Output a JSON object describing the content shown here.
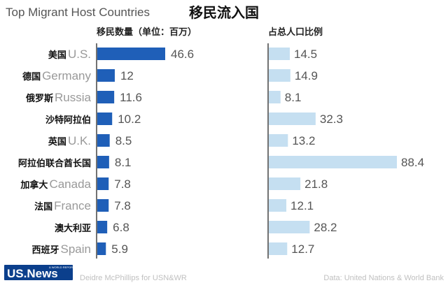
{
  "title_en": "Top Migrant Host Countries",
  "title_zh": "移民流入国",
  "footer": {
    "credit": "Deidre McPhillips for USN&WR",
    "source": "Data: United Nations & World Bank",
    "logo_main": "US.News",
    "logo_small": "& WORLD REPORT"
  },
  "colors": {
    "left_bar": "#1f5fb8",
    "right_bar": "#c5dff1"
  },
  "chart_data": [
    {
      "type": "bar",
      "orientation": "horizontal",
      "title": "移民数量（单位：百万）",
      "categories_zh": [
        "美国",
        "德国",
        "俄罗斯",
        "沙特阿拉伯",
        "英国",
        "阿拉伯联合酋长国",
        "加拿大",
        "法国",
        "澳大利亚",
        "西班牙"
      ],
      "categories_en": [
        "U.S.",
        "Germany",
        "Russia",
        "",
        "U.K.",
        "",
        "Canada",
        "France",
        "",
        "Spain"
      ],
      "values": [
        46.6,
        12,
        11.6,
        10.2,
        8.5,
        8.1,
        7.8,
        7.8,
        6.8,
        5.9
      ],
      "labels": [
        "46.6",
        "12",
        "11.6",
        "10.2",
        "8.5",
        "8.1",
        "7.8",
        "7.8",
        "6.8",
        "5.9"
      ]
    },
    {
      "type": "bar",
      "orientation": "horizontal",
      "title": "占总人口比例",
      "values": [
        14.5,
        14.9,
        8.1,
        32.3,
        13.2,
        88.4,
        21.8,
        12.1,
        28.2,
        12.7
      ],
      "labels": [
        "14.5",
        "14.9",
        "8.1",
        "32.3",
        "13.2",
        "88.4",
        "21.8",
        "12.1",
        "28.2",
        "12.7"
      ]
    }
  ]
}
